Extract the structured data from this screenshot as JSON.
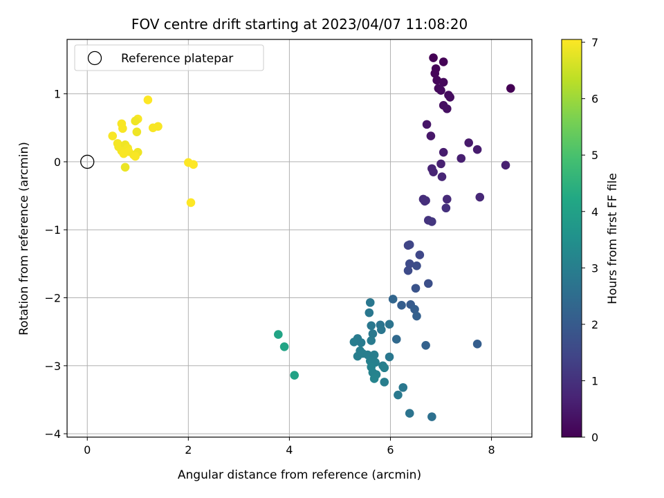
{
  "chart_data": {
    "type": "scatter",
    "title": "FOV centre drift starting at 2023/04/07 11:08:20",
    "xlabel": "Angular distance from reference (arcmin)",
    "ylabel": "Rotation from reference (arcmin)",
    "xlim": [
      -0.4,
      8.8
    ],
    "ylim": [
      -4.05,
      1.8
    ],
    "xticks": [
      0,
      2,
      4,
      6,
      8
    ],
    "yticks": [
      -4,
      -3,
      -2,
      -1,
      0,
      1
    ],
    "grid": true,
    "legend": {
      "placement": "top-left",
      "entries": [
        "Reference platepar"
      ]
    },
    "reference_point": {
      "x": 0,
      "y": 0
    },
    "colorbar": {
      "label": "Hours from first FF file",
      "range": [
        0,
        7.05
      ],
      "ticks": [
        0,
        1,
        2,
        3,
        4,
        5,
        6,
        7
      ],
      "colormap": "viridis"
    },
    "points": [
      {
        "x": 6.85,
        "y": 1.53,
        "c": 0.0
      },
      {
        "x": 7.05,
        "y": 1.47,
        "c": 0.05
      },
      {
        "x": 6.9,
        "y": 1.37,
        "c": 0.08
      },
      {
        "x": 6.88,
        "y": 1.3,
        "c": 0.1
      },
      {
        "x": 6.92,
        "y": 1.2,
        "c": 0.12
      },
      {
        "x": 7.05,
        "y": 1.17,
        "c": 0.15
      },
      {
        "x": 6.95,
        "y": 1.08,
        "c": 0.18
      },
      {
        "x": 7.0,
        "y": 1.05,
        "c": 0.2
      },
      {
        "x": 7.15,
        "y": 0.98,
        "c": 0.22
      },
      {
        "x": 7.18,
        "y": 0.95,
        "c": 0.24
      },
      {
        "x": 7.05,
        "y": 0.83,
        "c": 0.28
      },
      {
        "x": 7.12,
        "y": 0.78,
        "c": 0.3
      },
      {
        "x": 8.38,
        "y": 1.08,
        "c": 0.0
      },
      {
        "x": 6.72,
        "y": 0.55,
        "c": 0.4
      },
      {
        "x": 6.8,
        "y": 0.38,
        "c": 0.45
      },
      {
        "x": 7.55,
        "y": 0.28,
        "c": 0.5
      },
      {
        "x": 7.72,
        "y": 0.18,
        "c": 0.55
      },
      {
        "x": 7.05,
        "y": 0.14,
        "c": 0.55
      },
      {
        "x": 7.4,
        "y": 0.05,
        "c": 0.6
      },
      {
        "x": 7.0,
        "y": -0.03,
        "c": 0.65
      },
      {
        "x": 6.82,
        "y": -0.1,
        "c": 0.7
      },
      {
        "x": 6.85,
        "y": -0.15,
        "c": 0.72
      },
      {
        "x": 7.02,
        "y": -0.22,
        "c": 0.75
      },
      {
        "x": 8.28,
        "y": -0.05,
        "c": 0.6
      },
      {
        "x": 7.77,
        "y": -0.52,
        "c": 0.8
      },
      {
        "x": 7.12,
        "y": -0.55,
        "c": 0.85
      },
      {
        "x": 6.65,
        "y": -0.55,
        "c": 0.9
      },
      {
        "x": 6.7,
        "y": -0.57,
        "c": 0.95
      },
      {
        "x": 6.68,
        "y": -0.58,
        "c": 0.95
      },
      {
        "x": 7.1,
        "y": -0.68,
        "c": 1.0
      },
      {
        "x": 6.75,
        "y": -0.86,
        "c": 1.05
      },
      {
        "x": 6.82,
        "y": -0.88,
        "c": 1.1
      },
      {
        "x": 6.35,
        "y": -1.23,
        "c": 1.4
      },
      {
        "x": 6.38,
        "y": -1.22,
        "c": 1.45
      },
      {
        "x": 6.58,
        "y": -1.37,
        "c": 1.5
      },
      {
        "x": 6.38,
        "y": -1.5,
        "c": 1.6
      },
      {
        "x": 6.52,
        "y": -1.53,
        "c": 1.65
      },
      {
        "x": 6.35,
        "y": -1.6,
        "c": 1.6
      },
      {
        "x": 6.75,
        "y": -1.79,
        "c": 1.7
      },
      {
        "x": 6.5,
        "y": -1.86,
        "c": 1.8
      },
      {
        "x": 6.4,
        "y": -2.1,
        "c": 2.0
      },
      {
        "x": 6.22,
        "y": -2.11,
        "c": 2.1
      },
      {
        "x": 6.48,
        "y": -2.17,
        "c": 2.1
      },
      {
        "x": 6.52,
        "y": -2.27,
        "c": 2.15
      },
      {
        "x": 6.05,
        "y": -2.02,
        "c": 2.3
      },
      {
        "x": 7.72,
        "y": -2.68,
        "c": 2.1
      },
      {
        "x": 6.7,
        "y": -2.7,
        "c": 2.2
      },
      {
        "x": 6.12,
        "y": -2.61,
        "c": 2.4
      },
      {
        "x": 5.6,
        "y": -2.07,
        "c": 2.8
      },
      {
        "x": 5.58,
        "y": -2.22,
        "c": 2.8
      },
      {
        "x": 5.62,
        "y": -2.41,
        "c": 2.8
      },
      {
        "x": 5.8,
        "y": -2.4,
        "c": 2.7
      },
      {
        "x": 5.82,
        "y": -2.47,
        "c": 2.75
      },
      {
        "x": 5.98,
        "y": -2.39,
        "c": 2.7
      },
      {
        "x": 5.65,
        "y": -2.53,
        "c": 2.85
      },
      {
        "x": 5.62,
        "y": -2.63,
        "c": 2.9
      },
      {
        "x": 5.35,
        "y": -2.6,
        "c": 2.9
      },
      {
        "x": 5.28,
        "y": -2.65,
        "c": 2.95
      },
      {
        "x": 5.42,
        "y": -2.66,
        "c": 2.9
      },
      {
        "x": 5.4,
        "y": -2.78,
        "c": 3.0
      },
      {
        "x": 5.35,
        "y": -2.86,
        "c": 3.0
      },
      {
        "x": 5.45,
        "y": -2.82,
        "c": 3.0
      },
      {
        "x": 5.55,
        "y": -2.84,
        "c": 3.0
      },
      {
        "x": 5.68,
        "y": -2.84,
        "c": 3.0
      },
      {
        "x": 5.98,
        "y": -2.87,
        "c": 2.8
      },
      {
        "x": 5.6,
        "y": -2.93,
        "c": 3.05
      },
      {
        "x": 5.7,
        "y": -2.95,
        "c": 3.05
      },
      {
        "x": 5.62,
        "y": -3.02,
        "c": 3.1
      },
      {
        "x": 5.85,
        "y": -3.0,
        "c": 3.0
      },
      {
        "x": 5.88,
        "y": -3.03,
        "c": 3.05
      },
      {
        "x": 5.65,
        "y": -3.1,
        "c": 3.1
      },
      {
        "x": 5.72,
        "y": -3.13,
        "c": 3.1
      },
      {
        "x": 5.68,
        "y": -3.19,
        "c": 3.15
      },
      {
        "x": 5.88,
        "y": -3.24,
        "c": 3.0
      },
      {
        "x": 6.25,
        "y": -3.32,
        "c": 2.8
      },
      {
        "x": 6.15,
        "y": -3.43,
        "c": 2.85
      },
      {
        "x": 6.38,
        "y": -3.7,
        "c": 2.7
      },
      {
        "x": 6.82,
        "y": -3.75,
        "c": 2.6
      },
      {
        "x": 3.78,
        "y": -2.54,
        "c": 4.1
      },
      {
        "x": 3.9,
        "y": -2.72,
        "c": 4.1
      },
      {
        "x": 4.1,
        "y": -3.14,
        "c": 4.05
      },
      {
        "x": 1.2,
        "y": 0.91,
        "c": 7.05
      },
      {
        "x": 1.0,
        "y": 0.63,
        "c": 7.0
      },
      {
        "x": 0.95,
        "y": 0.6,
        "c": 6.9
      },
      {
        "x": 0.68,
        "y": 0.56,
        "c": 7.0
      },
      {
        "x": 0.7,
        "y": 0.49,
        "c": 7.0
      },
      {
        "x": 0.98,
        "y": 0.44,
        "c": 6.9
      },
      {
        "x": 1.3,
        "y": 0.5,
        "c": 7.0
      },
      {
        "x": 1.4,
        "y": 0.52,
        "c": 7.0
      },
      {
        "x": 0.5,
        "y": 0.38,
        "c": 7.0
      },
      {
        "x": 0.6,
        "y": 0.27,
        "c": 6.95
      },
      {
        "x": 0.62,
        "y": 0.22,
        "c": 6.95
      },
      {
        "x": 0.75,
        "y": 0.25,
        "c": 6.9
      },
      {
        "x": 0.8,
        "y": 0.2,
        "c": 6.95
      },
      {
        "x": 0.68,
        "y": 0.16,
        "c": 6.95
      },
      {
        "x": 0.72,
        "y": 0.12,
        "c": 7.0
      },
      {
        "x": 0.82,
        "y": 0.15,
        "c": 7.0
      },
      {
        "x": 0.92,
        "y": 0.1,
        "c": 6.95
      },
      {
        "x": 1.0,
        "y": 0.14,
        "c": 6.9
      },
      {
        "x": 0.95,
        "y": 0.08,
        "c": 7.0
      },
      {
        "x": 0.75,
        "y": -0.08,
        "c": 6.85
      },
      {
        "x": 2.0,
        "y": -0.01,
        "c": 7.05
      },
      {
        "x": 2.1,
        "y": -0.04,
        "c": 7.05
      },
      {
        "x": 2.05,
        "y": -0.6,
        "c": 7.05
      }
    ]
  }
}
